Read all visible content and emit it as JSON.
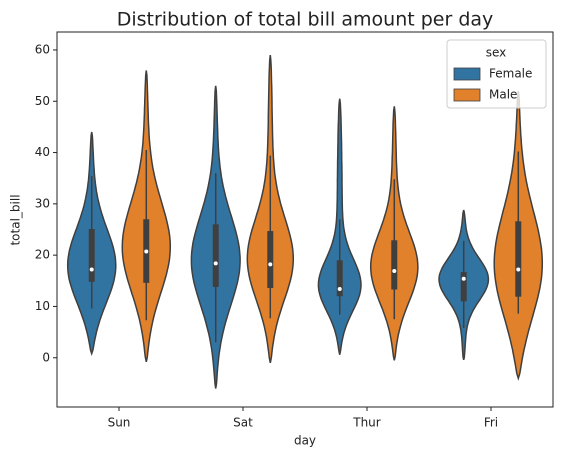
{
  "chart_data": {
    "type": "violin",
    "title": "Distribution of total bill amount per day",
    "x_label": "day",
    "y_label": "total_bill",
    "categories": [
      "Sun",
      "Sat",
      "Thur",
      "Fri"
    ],
    "legend_title": "sex",
    "legend_position": "upper right",
    "ylim": [
      -9.6,
      63.5
    ],
    "yticks": [
      0,
      10,
      20,
      30,
      40,
      50,
      60
    ],
    "grid": false,
    "series": [
      {
        "name": "Female",
        "color": "#3274a1",
        "low": [
          0.8,
          -6,
          0.6,
          -0.4
        ],
        "high": [
          44,
          53,
          50.5,
          28.8
        ],
        "whisker_low": [
          9.6,
          3,
          8.4,
          5.8
        ],
        "q1": [
          14.8,
          13.8,
          12,
          11
        ],
        "median": [
          17.2,
          18.4,
          13.4,
          15.4
        ],
        "q3": [
          25.1,
          26,
          19,
          16.7
        ],
        "whisker_high": [
          35.4,
          36,
          27,
          22.8
        ]
      },
      {
        "name": "Male",
        "color": "#e1812c",
        "low": [
          -0.8,
          -1,
          -0.5,
          -4
        ],
        "high": [
          56,
          59,
          49,
          52
        ],
        "whisker_low": [
          7.3,
          7.7,
          7.5,
          8.6
        ],
        "q1": [
          14.6,
          13.6,
          13.3,
          11.9
        ],
        "median": [
          20.7,
          18.2,
          16.9,
          17.2
        ],
        "q3": [
          27,
          24.7,
          22.9,
          26.6
        ],
        "whisker_high": [
          40.5,
          39.4,
          34.8,
          40.2
        ]
      }
    ]
  }
}
